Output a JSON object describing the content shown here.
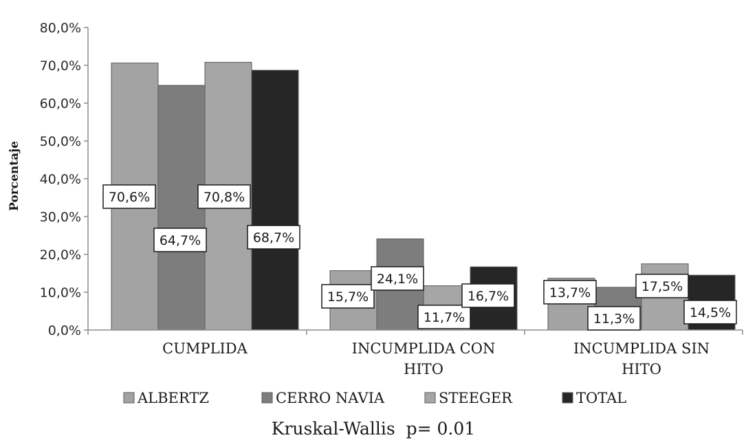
{
  "chart_data": {
    "type": "bar",
    "categories": [
      [
        "CUMPLIDA"
      ],
      [
        "INCUMPLIDA CON",
        "HITO"
      ],
      [
        "INCUMPLIDA SIN",
        "HITO"
      ]
    ],
    "series": [
      {
        "name": "ALBERTZ",
        "values": [
          70.6,
          15.7,
          13.7
        ],
        "labels": [
          "70,6%",
          "15,7%",
          "13,7%"
        ],
        "color": "#a3a3a3"
      },
      {
        "name": "CERRO NAVIA",
        "values": [
          64.7,
          24.1,
          11.3
        ],
        "labels": [
          "64,7%",
          "24,1%",
          "11,3%"
        ],
        "color": "#7d7d7d"
      },
      {
        "name": "STEEGER",
        "values": [
          70.8,
          11.7,
          17.5
        ],
        "labels": [
          "70,8%",
          "11,7%",
          "17,5%"
        ],
        "color": "#a6a6a6"
      },
      {
        "name": "TOTAL",
        "values": [
          68.7,
          16.7,
          14.5
        ],
        "labels": [
          "68,7%",
          "16,7%",
          "14,5%"
        ],
        "color": "#262626"
      }
    ],
    "ylabel": "Porcentaje",
    "xlabel": "",
    "ylim": [
      0,
      80
    ],
    "yticks": [
      "0,0%",
      "10,0%",
      "20,0%",
      "30,0%",
      "40,0%",
      "50,0%",
      "60,0%",
      "70,0%",
      "80,0%"
    ],
    "grid": false,
    "legend": "bottom",
    "note": "Kruskal-Wallis  p= 0.01"
  }
}
